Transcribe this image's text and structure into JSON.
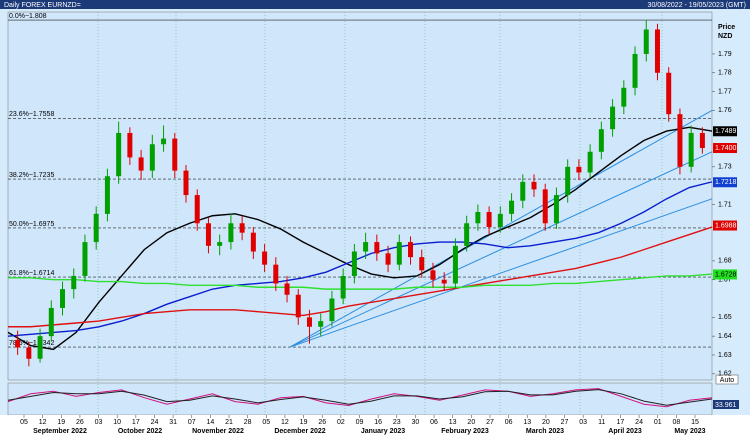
{
  "chart_data": {
    "type": "candlestick",
    "title": "Daily FOREX EURNZD=",
    "date_range": "30/08/2022 - 19/05/2023 (GMT)",
    "axis_title": "Price",
    "axis_unit": "NZD",
    "auto_button": "Auto",
    "ylim": [
      1.6167,
      1.8091
    ],
    "yticks": [
      1.79,
      1.78,
      1.77,
      1.76,
      1.73,
      1.71,
      1.68,
      1.67,
      1.65,
      1.64,
      1.63,
      1.62
    ],
    "fib_levels": [
      {
        "value": 1.808,
        "label": "0.0%−1.808"
      },
      {
        "value": 1.7558,
        "label": "23.6%−1.7558"
      },
      {
        "value": 1.7235,
        "label": "38.2%−1.7235"
      },
      {
        "value": 1.6975,
        "label": "50.0%−1.6975"
      },
      {
        "value": 1.6714,
        "label": "61.8%−1.6714"
      },
      {
        "value": 1.6342,
        "label": "78.6%−1.6342"
      }
    ],
    "price_labels": [
      {
        "value": 1.7489,
        "label": "1.7489",
        "color": "#000000",
        "text_color": "#ffffff"
      },
      {
        "value": 1.74,
        "label": "1.7400",
        "color": "#e00000",
        "text_color": "#ffffff"
      },
      {
        "value": 1.7218,
        "label": "1.7218",
        "color": "#1040d0",
        "text_color": "#ffffff"
      },
      {
        "value": 1.6988,
        "label": "1.6988",
        "color": "#e00000",
        "text_color": "#ffffff"
      },
      {
        "value": 1.6728,
        "label": "1.6728",
        "color": "#20e020",
        "text_color": "#000000"
      }
    ],
    "up_color": "#00a000",
    "down_color": "#e00000",
    "candles": [
      [
        1.638,
        1.643,
        1.63,
        1.634
      ],
      [
        1.634,
        1.637,
        1.624,
        1.628
      ],
      [
        1.628,
        1.644,
        1.626,
        1.64
      ],
      [
        1.64,
        1.659,
        1.637,
        1.655
      ],
      [
        1.655,
        1.669,
        1.651,
        1.665
      ],
      [
        1.665,
        1.676,
        1.66,
        1.672
      ],
      [
        1.672,
        1.694,
        1.669,
        1.69
      ],
      [
        1.69,
        1.709,
        1.686,
        1.705
      ],
      [
        1.705,
        1.729,
        1.701,
        1.725
      ],
      [
        1.725,
        1.754,
        1.721,
        1.748
      ],
      [
        1.748,
        1.751,
        1.731,
        1.735
      ],
      [
        1.735,
        1.739,
        1.723,
        1.728
      ],
      [
        1.728,
        1.747,
        1.724,
        1.742
      ],
      [
        1.742,
        1.752,
        1.738,
        1.745
      ],
      [
        1.745,
        1.748,
        1.724,
        1.728
      ],
      [
        1.728,
        1.731,
        1.711,
        1.715
      ],
      [
        1.715,
        1.718,
        1.696,
        1.7
      ],
      [
        1.7,
        1.703,
        1.684,
        1.688
      ],
      [
        1.688,
        1.694,
        1.683,
        1.69
      ],
      [
        1.69,
        1.705,
        1.686,
        1.7
      ],
      [
        1.7,
        1.704,
        1.691,
        1.695
      ],
      [
        1.695,
        1.698,
        1.681,
        1.685
      ],
      [
        1.685,
        1.689,
        1.674,
        1.678
      ],
      [
        1.678,
        1.682,
        1.664,
        1.668
      ],
      [
        1.668,
        1.672,
        1.658,
        1.662
      ],
      [
        1.662,
        1.665,
        1.646,
        1.65
      ],
      [
        1.65,
        1.654,
        1.636,
        1.645
      ],
      [
        1.645,
        1.652,
        1.64,
        1.648
      ],
      [
        1.648,
        1.664,
        1.645,
        1.66
      ],
      [
        1.66,
        1.676,
        1.657,
        1.672
      ],
      [
        1.672,
        1.689,
        1.668,
        1.685
      ],
      [
        1.685,
        1.695,
        1.681,
        1.69
      ],
      [
        1.69,
        1.694,
        1.68,
        1.684
      ],
      [
        1.684,
        1.688,
        1.674,
        1.678
      ],
      [
        1.678,
        1.694,
        1.675,
        1.69
      ],
      [
        1.69,
        1.693,
        1.678,
        1.682
      ],
      [
        1.682,
        1.686,
        1.671,
        1.675
      ],
      [
        1.675,
        1.679,
        1.666,
        1.67
      ],
      [
        1.67,
        1.674,
        1.664,
        1.668
      ],
      [
        1.668,
        1.692,
        1.665,
        1.688
      ],
      [
        1.688,
        1.704,
        1.685,
        1.7
      ],
      [
        1.7,
        1.71,
        1.696,
        1.706
      ],
      [
        1.706,
        1.709,
        1.694,
        1.698
      ],
      [
        1.698,
        1.709,
        1.695,
        1.705
      ],
      [
        1.705,
        1.716,
        1.701,
        1.712
      ],
      [
        1.712,
        1.726,
        1.708,
        1.722
      ],
      [
        1.722,
        1.726,
        1.714,
        1.718
      ],
      [
        1.718,
        1.721,
        1.696,
        1.7
      ],
      [
        1.7,
        1.719,
        1.697,
        1.715
      ],
      [
        1.715,
        1.734,
        1.711,
        1.73
      ],
      [
        1.73,
        1.734,
        1.723,
        1.727
      ],
      [
        1.727,
        1.742,
        1.724,
        1.738
      ],
      [
        1.738,
        1.754,
        1.734,
        1.75
      ],
      [
        1.75,
        1.766,
        1.746,
        1.762
      ],
      [
        1.762,
        1.776,
        1.758,
        1.772
      ],
      [
        1.772,
        1.794,
        1.768,
        1.79
      ],
      [
        1.79,
        1.808,
        1.786,
        1.803
      ],
      [
        1.803,
        1.806,
        1.776,
        1.78
      ],
      [
        1.78,
        1.783,
        1.754,
        1.758
      ],
      [
        1.758,
        1.761,
        1.726,
        1.73
      ],
      [
        1.73,
        1.752,
        1.727,
        1.748
      ],
      [
        1.748,
        1.751,
        1.737,
        1.74
      ]
    ],
    "moving_averages": [
      {
        "color": "#000000",
        "values": [
          1.642,
          1.635,
          1.633,
          1.642,
          1.658,
          1.672,
          1.686,
          1.695,
          1.7,
          1.704,
          1.705,
          1.702,
          1.697,
          1.69,
          1.684,
          1.678,
          1.673,
          1.671,
          1.672,
          1.678,
          1.686,
          1.693,
          1.698,
          1.703,
          1.71,
          1.718,
          1.727,
          1.736,
          1.744,
          1.749,
          1.751,
          1.749
        ]
      },
      {
        "color": "#0a1ed0",
        "values": [
          1.64,
          1.641,
          1.642,
          1.643,
          1.645,
          1.648,
          1.652,
          1.657,
          1.661,
          1.665,
          1.667,
          1.668,
          1.669,
          1.671,
          1.674,
          1.679,
          1.684,
          1.687,
          1.689,
          1.69,
          1.69,
          1.689,
          1.687,
          1.688,
          1.69,
          1.692,
          1.695,
          1.7,
          1.706,
          1.713,
          1.719,
          1.722
        ]
      },
      {
        "color": "#e01010",
        "values": [
          1.645,
          1.645,
          1.646,
          1.647,
          1.648,
          1.65,
          1.652,
          1.653,
          1.654,
          1.654,
          1.654,
          1.653,
          1.652,
          1.651,
          1.653,
          1.656,
          1.658,
          1.66,
          1.662,
          1.664,
          1.666,
          1.668,
          1.67,
          1.672,
          1.674,
          1.676,
          1.679,
          1.682,
          1.686,
          1.69,
          1.694,
          1.698
        ]
      },
      {
        "color": "#30e030",
        "values": [
          1.671,
          1.671,
          1.67,
          1.67,
          1.669,
          1.669,
          1.668,
          1.668,
          1.667,
          1.667,
          1.667,
          1.666,
          1.666,
          1.666,
          1.665,
          1.665,
          1.665,
          1.665,
          1.666,
          1.666,
          1.666,
          1.667,
          1.667,
          1.667,
          1.668,
          1.668,
          1.669,
          1.67,
          1.671,
          1.672,
          1.672,
          1.673
        ]
      }
    ],
    "trendlines": {
      "color": "#2a8ee0",
      "start": 1.6342,
      "ends": [
        1.76,
        1.738,
        1.713
      ]
    },
    "oscillator": {
      "ylim": [
        0,
        100
      ],
      "value_label": "33.961",
      "series": [
        {
          "color": "#d01080",
          "values": [
            40,
            70,
            80,
            60,
            75,
            85,
            55,
            30,
            50,
            70,
            40,
            30,
            55,
            60,
            35,
            25,
            50,
            70,
            60,
            45,
            65,
            85,
            80,
            60,
            70,
            85,
            90,
            60,
            30,
            20,
            45,
            55
          ]
        },
        {
          "color": "#202020",
          "values": [
            45,
            60,
            75,
            70,
            70,
            80,
            65,
            40,
            45,
            62,
            50,
            35,
            48,
            58,
            45,
            30,
            42,
            62,
            62,
            50,
            58,
            78,
            80,
            66,
            66,
            80,
            86,
            70,
            42,
            26,
            38,
            50
          ]
        }
      ]
    },
    "x_day_labels": [
      "05",
      "12",
      "19",
      "26",
      "03",
      "10",
      "17",
      "24",
      "31",
      "07",
      "14",
      "21",
      "28",
      "05",
      "12",
      "19",
      "26",
      "02",
      "09",
      "16",
      "23",
      "30",
      "06",
      "13",
      "20",
      "27",
      "06",
      "13",
      "20",
      "27",
      "03",
      "11",
      "17",
      "24",
      "01",
      "08",
      "15"
    ],
    "x_month_labels": [
      "September 2022",
      "October 2022",
      "November 2022",
      "December 2022",
      "January 2023",
      "February 2023",
      "March 2023",
      "April 2023",
      "May 2023"
    ]
  }
}
